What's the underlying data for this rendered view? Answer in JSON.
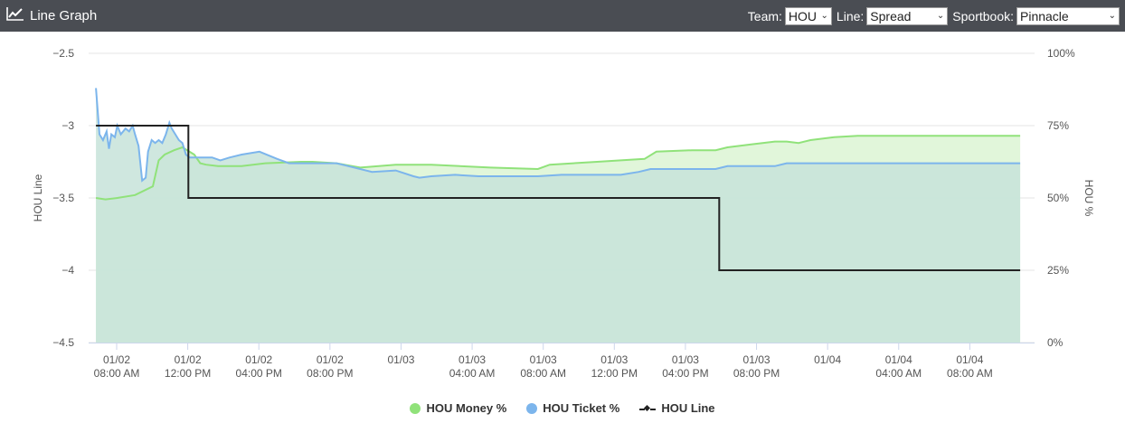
{
  "header": {
    "title": "Line Graph",
    "icon": "line-chart-icon",
    "team_label": "Team:",
    "team_value": "HOU",
    "line_label": "Line:",
    "line_value": "Spread",
    "sportsbook_label": "Sportbook:",
    "sportsbook_value": "Pinnacle"
  },
  "colors": {
    "header_bg": "#4a4d53",
    "money": "#90e27a",
    "money_fill": "#dcf5d3",
    "ticket": "#7cb5ec",
    "ticket_fill": "#c7e3d9",
    "line": "#222222",
    "grid": "#e6e6e6"
  },
  "chart_data": {
    "type": "line",
    "y_left_label": "HOU Line",
    "y_right_label": "HOU %",
    "y_left_ticks": [
      "−2.5",
      "−3",
      "−3.5",
      "−4",
      "−4.5"
    ],
    "y_right_ticks": [
      "100%",
      "75%",
      "50%",
      "25%",
      "0%"
    ],
    "y_left_range": [
      -4.5,
      -2.5
    ],
    "y_right_range": [
      0,
      100
    ],
    "x_range_hours": [
      0,
      78
    ],
    "x_ticks": [
      {
        "h": 0,
        "l1": "01/02",
        "l2": "08:00 AM"
      },
      {
        "h": 6,
        "l1": "01/02",
        "l2": "12:00 PM"
      },
      {
        "h": 12,
        "l1": "01/02",
        "l2": "04:00 PM"
      },
      {
        "h": 18,
        "l1": "01/02",
        "l2": "08:00 PM"
      },
      {
        "h": 24,
        "l1": "01/03",
        "l2": ""
      },
      {
        "h": 30,
        "l1": "01/03",
        "l2": "04:00 AM"
      },
      {
        "h": 36,
        "l1": "01/03",
        "l2": "08:00 AM"
      },
      {
        "h": 42,
        "l1": "01/03",
        "l2": "12:00 PM"
      },
      {
        "h": 48,
        "l1": "01/03",
        "l2": "04:00 PM"
      },
      {
        "h": 54,
        "l1": "01/03",
        "l2": "08:00 PM"
      },
      {
        "h": 60,
        "l1": "01/04",
        "l2": ""
      },
      {
        "h": 66,
        "l1": "01/04",
        "l2": "04:00 AM"
      },
      {
        "h": 72,
        "l1": "01/04",
        "l2": "08:00 AM"
      }
    ],
    "series": [
      {
        "name": "HOU Money %",
        "axis": "right",
        "points": [
          [
            -0.3,
            50
          ],
          [
            0.5,
            49.5
          ],
          [
            1.5,
            50
          ],
          [
            3,
            51
          ],
          [
            4.5,
            54
          ],
          [
            5,
            63
          ],
          [
            5.5,
            65
          ],
          [
            6.3,
            66.5
          ],
          [
            7,
            67.5
          ],
          [
            8,
            65
          ],
          [
            8.5,
            62
          ],
          [
            9,
            61.5
          ],
          [
            10,
            61
          ],
          [
            12,
            61
          ],
          [
            14,
            62
          ],
          [
            17,
            62.5
          ],
          [
            18,
            62.5
          ],
          [
            20,
            62
          ],
          [
            22,
            60.5
          ],
          [
            25,
            61.5
          ],
          [
            28,
            61.5
          ],
          [
            33,
            60.5
          ],
          [
            37,
            60
          ],
          [
            38,
            61.5
          ],
          [
            40,
            62
          ],
          [
            42,
            62.5
          ],
          [
            44,
            63
          ],
          [
            46,
            63.5
          ],
          [
            47,
            66
          ],
          [
            50,
            66.5
          ],
          [
            52,
            66.5
          ],
          [
            53,
            67.5
          ],
          [
            55,
            68.5
          ],
          [
            57,
            69.5
          ],
          [
            58,
            69.5
          ],
          [
            59,
            69
          ],
          [
            60,
            70
          ],
          [
            62,
            71
          ],
          [
            64,
            71.5
          ],
          [
            67,
            71.5
          ],
          [
            72,
            71.5
          ],
          [
            77.7,
            71.5
          ]
        ]
      },
      {
        "name": "HOU Ticket %",
        "axis": "right",
        "points": [
          [
            -0.3,
            88
          ],
          [
            0,
            72
          ],
          [
            0.3,
            70
          ],
          [
            0.6,
            73
          ],
          [
            0.8,
            67
          ],
          [
            1,
            72
          ],
          [
            1.3,
            71
          ],
          [
            1.5,
            75
          ],
          [
            1.8,
            72
          ],
          [
            2.2,
            74
          ],
          [
            2.5,
            73
          ],
          [
            2.8,
            75
          ],
          [
            3,
            72
          ],
          [
            3.3,
            68
          ],
          [
            3.6,
            56
          ],
          [
            3.9,
            57
          ],
          [
            4.1,
            66
          ],
          [
            4.4,
            70
          ],
          [
            4.7,
            69
          ],
          [
            5,
            70
          ],
          [
            5.3,
            69
          ],
          [
            5.6,
            72
          ],
          [
            5.9,
            76
          ],
          [
            6.1,
            74
          ],
          [
            6.4,
            72
          ],
          [
            6.7,
            70
          ],
          [
            7,
            69
          ],
          [
            7.3,
            65
          ],
          [
            7.6,
            64
          ],
          [
            8,
            64
          ],
          [
            8.5,
            64
          ],
          [
            9.5,
            64
          ],
          [
            10.2,
            63
          ],
          [
            11,
            64
          ],
          [
            12,
            65
          ],
          [
            13.5,
            66
          ],
          [
            15,
            63.5
          ],
          [
            16,
            62
          ],
          [
            18,
            62
          ],
          [
            20,
            62
          ],
          [
            21,
            61
          ],
          [
            23,
            59
          ],
          [
            25,
            59.5
          ],
          [
            26.5,
            57.5
          ],
          [
            27,
            57
          ],
          [
            28,
            57.5
          ],
          [
            30,
            58
          ],
          [
            32,
            57.5
          ],
          [
            34,
            57.5
          ],
          [
            35,
            57.5
          ],
          [
            37,
            57.5
          ],
          [
            39,
            58
          ],
          [
            41,
            58
          ],
          [
            44,
            58
          ],
          [
            45.5,
            59
          ],
          [
            46.5,
            60
          ],
          [
            48,
            60
          ],
          [
            50,
            60
          ],
          [
            52,
            60
          ],
          [
            53,
            61
          ],
          [
            55,
            61
          ],
          [
            57,
            61
          ],
          [
            58,
            62
          ],
          [
            60,
            62
          ],
          [
            64,
            62
          ],
          [
            67,
            62
          ],
          [
            72,
            62
          ],
          [
            77.7,
            62
          ]
        ]
      },
      {
        "name": "HOU Line",
        "axis": "left",
        "points": [
          [
            -0.3,
            -3
          ],
          [
            7.5,
            -3
          ],
          [
            7.5,
            -3.5
          ],
          [
            52.3,
            -3.5
          ],
          [
            52.3,
            -4
          ],
          [
            77.7,
            -4
          ]
        ]
      }
    ],
    "legend": [
      "HOU Money %",
      "HOU Ticket %",
      "HOU Line"
    ],
    "legend_position": "bottom-center",
    "grid": true
  }
}
